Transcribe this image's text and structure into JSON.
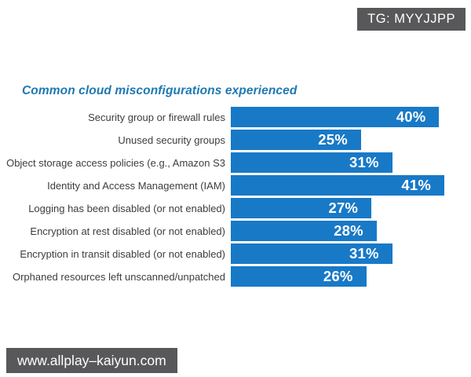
{
  "badges": {
    "top_right": "TG: MYYJJPP",
    "bottom_left": "www.allplay–kaiyun.com"
  },
  "chart_data": {
    "type": "bar",
    "orientation": "horizontal",
    "title": "Common cloud misconfigurations experienced",
    "categories": [
      "Security group or firewall rules",
      "Unused security groups",
      "Object storage access policies (e.g., Amazon S3",
      "Identity and Access Management (IAM)",
      "Logging has been disabled (or not enabled)",
      "Encryption at rest disabled (or not enabled)",
      "Encryption in transit disabled (or not enabled)",
      "Orphaned resources left unscanned/unpatched"
    ],
    "values": [
      40,
      25,
      31,
      41,
      27,
      28,
      31,
      26
    ],
    "value_suffix": "%",
    "xlim": [
      0,
      41
    ],
    "grid": false,
    "legend": false,
    "bar_color": "#1879c7",
    "title_color": "#1e79b2",
    "label_color": "#3d3d3d",
    "value_label_color": "#ffffff"
  }
}
